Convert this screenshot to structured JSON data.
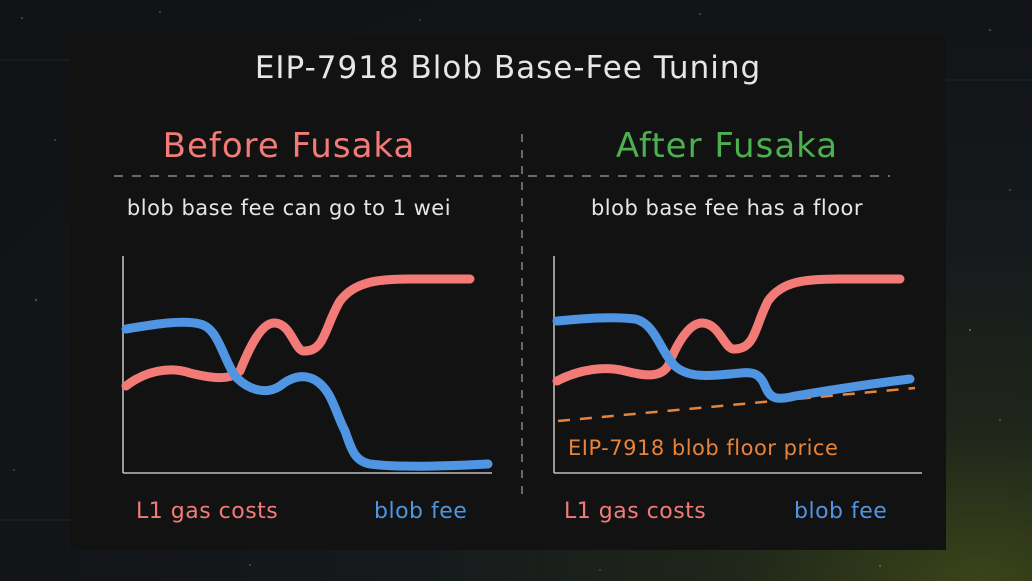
{
  "title": "EIP-7918 Blob Base-Fee Tuning",
  "colors": {
    "red": "#f27b78",
    "green": "#4caf50",
    "blue": "#4f95e2",
    "orange": "#e8833a",
    "text": "#e6e6e6",
    "divider": "#6a6a6a"
  },
  "panels": [
    {
      "heading": "Before Fusaka",
      "caption": "blob base fee can go to 1 wei",
      "legend": {
        "red_label": "L1 gas costs",
        "blue_label": "blob fee"
      }
    },
    {
      "heading": "After Fusaka",
      "caption": "blob base fee has a floor",
      "floor_label": "EIP-7918 blob floor price",
      "legend": {
        "red_label": "L1 gas costs",
        "blue_label": "blob fee"
      }
    }
  ]
}
